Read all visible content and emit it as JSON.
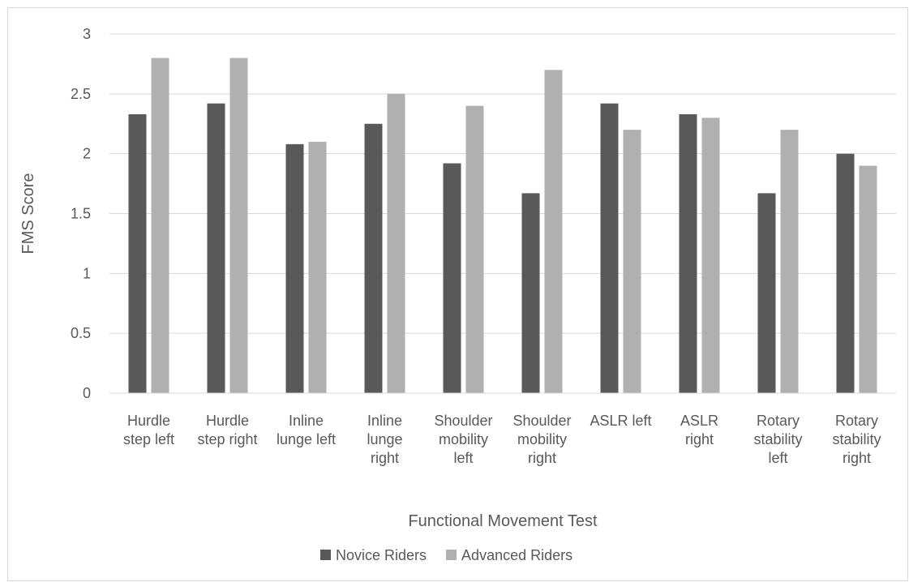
{
  "chart_data": {
    "type": "bar",
    "categories": [
      [
        "Hurdle",
        "step left"
      ],
      [
        "Hurdle",
        "step right"
      ],
      [
        "Inline",
        "lunge left"
      ],
      [
        "Inline",
        "lunge",
        "right"
      ],
      [
        "Shoulder",
        "mobility",
        "left"
      ],
      [
        "Shoulder",
        "mobility",
        "right"
      ],
      [
        "ASLR left"
      ],
      [
        "ASLR",
        "right"
      ],
      [
        "Rotary",
        "stability",
        "left"
      ],
      [
        "Rotary",
        "stability",
        "right"
      ]
    ],
    "series": [
      {
        "name": "Novice Riders",
        "color": "#595959",
        "values": [
          2.33,
          2.42,
          2.08,
          2.25,
          1.92,
          1.67,
          2.42,
          2.33,
          1.67,
          2.0
        ]
      },
      {
        "name": "Advanced Riders",
        "color": "#b0b0b0",
        "values": [
          2.8,
          2.8,
          2.1,
          2.5,
          2.4,
          2.7,
          2.2,
          2.3,
          2.2,
          1.9
        ]
      }
    ],
    "xlabel": "Functional Movement Test",
    "ylabel": "FMS Score",
    "ylim": [
      0,
      3
    ],
    "yticks": [
      "0",
      "0.5",
      "1",
      "1.5",
      "2",
      "2.5",
      "3"
    ],
    "grid": true,
    "legend_position": "bottom"
  }
}
